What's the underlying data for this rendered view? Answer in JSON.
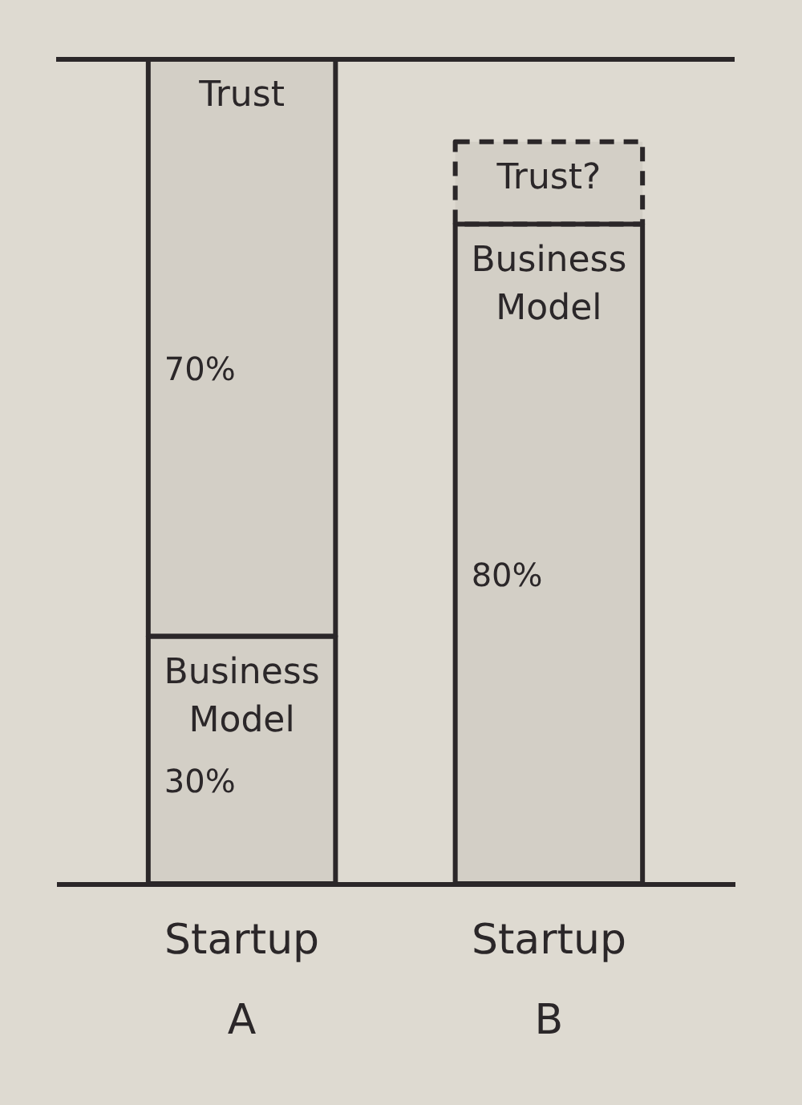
{
  "chart_data": {
    "type": "bar",
    "categories": [
      "Startup A",
      "Startup B"
    ],
    "stacked": true,
    "ylim": [
      0,
      100
    ],
    "tick_labels": "x",
    "series": [
      {
        "name": "Business Model",
        "color": "#2b2729",
        "values": [
          30,
          80
        ],
        "value_labels": [
          "30%",
          "80%"
        ]
      },
      {
        "name": "Trust",
        "color": "#2b2729",
        "values": [
          70,
          null
        ],
        "value_labels": [
          "70%",
          null
        ]
      },
      {
        "name": "Trust?",
        "color": "#2b2729",
        "values": [
          null,
          10
        ],
        "line_style": "dashed"
      }
    ],
    "ref_lines": [
      {
        "axis": "y",
        "value": 100,
        "color": "#2b2729"
      }
    ]
  }
}
